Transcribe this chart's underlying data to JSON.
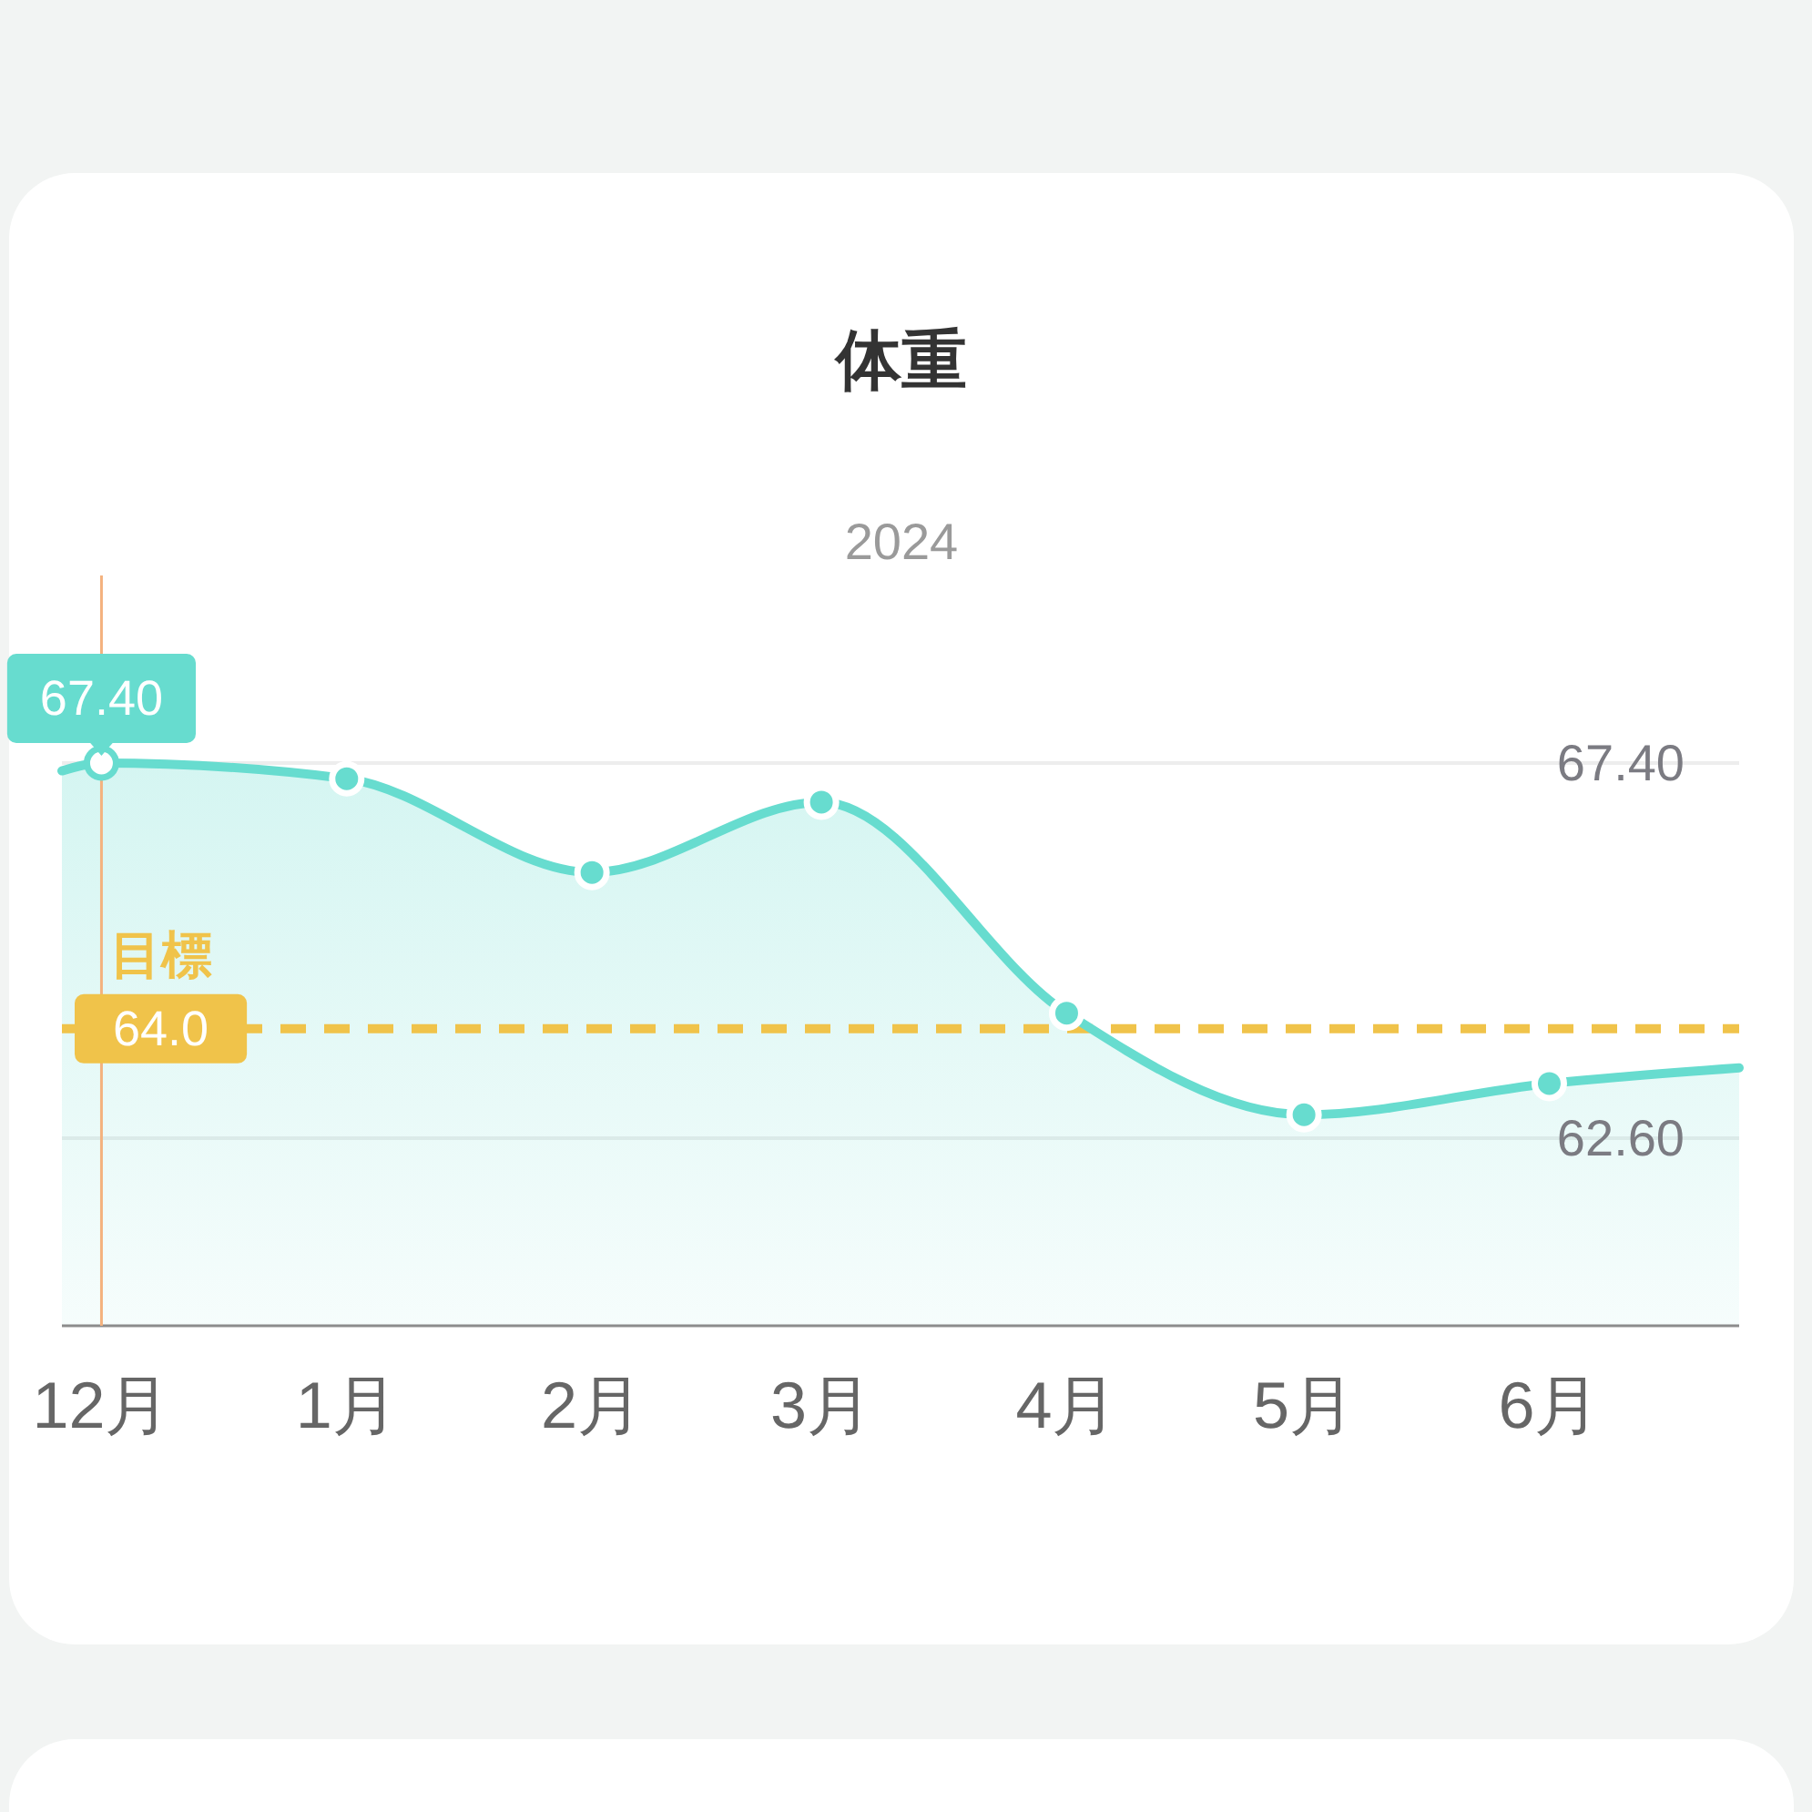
{
  "chart_data": {
    "type": "area",
    "title": "体重",
    "subtitle": "2024",
    "xlim": [
      "2023-11-26",
      "2024-06-25"
    ],
    "xticks": [
      {
        "value": "2023-12",
        "label": "12月"
      },
      {
        "value": "2024-01",
        "label": "1月"
      },
      {
        "value": "2024-02",
        "label": "2月"
      },
      {
        "value": "2024-03",
        "label": "3月"
      },
      {
        "value": "2024-04",
        "label": "4月"
      },
      {
        "value": "2024-05",
        "label": "5月"
      },
      {
        "value": "2024-06",
        "label": "6月"
      }
    ],
    "ylim": [
      60.2,
      69.8
    ],
    "yticks": [
      {
        "value": 67.4,
        "label": "67.40"
      },
      {
        "value": 62.6,
        "label": "62.60"
      }
    ],
    "grid": "y",
    "series": [
      {
        "color": "#67dccf",
        "x": [
          "2023-11-26",
          "2023-12",
          "2024-01",
          "2024-02",
          "2024-03",
          "2024-04",
          "2024-05",
          "2024-06",
          "2024-06-25"
        ],
        "values": [
          67.3,
          67.4,
          67.2,
          66.0,
          66.9,
          64.2,
          62.9,
          63.3,
          63.5
        ]
      },
      {
        "type": "scatter",
        "color": "#67dccf",
        "marker": "circle",
        "colors": [
          "#ffffff",
          "#67dccf",
          "#67dccf",
          "#67dccf",
          "#67dccf",
          "#67dccf",
          "#67dccf"
        ],
        "x": [
          "2023-12",
          "2024-01",
          "2024-02",
          "2024-03",
          "2024-04",
          "2024-05",
          "2024-06"
        ],
        "values": [
          67.4,
          67.2,
          66.0,
          66.9,
          64.2,
          62.9,
          63.3
        ]
      }
    ],
    "ref_lines": [
      {
        "axis": "x",
        "value": "2023-12",
        "color": "#f4b27e"
      },
      {
        "axis": "y",
        "value": 64.0,
        "label": "64.0",
        "color": "#f0c34a",
        "line_style": "dashed"
      }
    ],
    "annotations": [
      {
        "text": "67.40",
        "x": "2023-12",
        "y": 67.4
      },
      {
        "text": "目標",
        "x": "2023-12",
        "y": 64.0
      }
    ]
  }
}
